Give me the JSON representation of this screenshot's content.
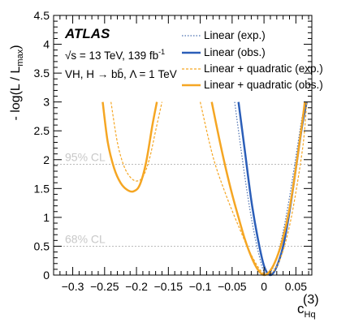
{
  "chart_data": {
    "type": "line",
    "xlim": [
      -0.33,
      0.075
    ],
    "ylim": [
      0,
      4.5
    ],
    "x_ticks": [
      -0.3,
      -0.25,
      -0.2,
      -0.15,
      -0.1,
      -0.05,
      0,
      0.05
    ],
    "x_tick_labels": [
      "−0.3",
      "−0.25",
      "−0.2",
      "−0.15",
      "−0.1",
      "−0.05",
      "0",
      "0.05"
    ],
    "y_ticks": [
      0,
      0.5,
      1,
      1.5,
      2,
      2.5,
      3,
      3.5,
      4,
      4.5
    ],
    "y_tick_labels": [
      "0",
      "0.5",
      "1",
      "1.5",
      "2",
      "2.5",
      "3",
      "3.5",
      "4",
      "4.5"
    ],
    "ylabel": "- log(L / L",
    "ylabel_sub": "max",
    "ylabel_close": ")",
    "xlabel": "c",
    "xlabel_sub": "Hq",
    "xlabel_sup": "(3)",
    "reference_lines": [
      {
        "label": "95% CL",
        "y": 1.92
      },
      {
        "label": "68% CL",
        "y": 0.5
      }
    ],
    "atlas_label": "ATLAS",
    "info_lines": [
      "√s = 13 TeV, 139 fb",
      "VH, H → bb̄, Λ = 1 TeV"
    ],
    "info_sup": "-1",
    "series": [
      {
        "name": "Linear (exp.)",
        "color": "#4a6fb0",
        "style": "dotted",
        "x": [
          -0.046,
          -0.04,
          -0.03,
          -0.02,
          -0.01,
          0.0,
          0.01,
          0.02,
          0.03,
          0.04,
          0.05,
          0.06,
          0.066
        ],
        "y": [
          3.0,
          2.5,
          1.7,
          1.0,
          0.45,
          0.06,
          0.05,
          0.3,
          0.75,
          1.35,
          2.05,
          2.75,
          3.0
        ]
      },
      {
        "name": "Linear (obs.)",
        "color": "#2b5eb8",
        "style": "solid",
        "x": [
          -0.04,
          -0.03,
          -0.02,
          -0.01,
          0.0,
          0.01,
          0.02,
          0.03,
          0.04,
          0.05,
          0.06,
          0.067
        ],
        "y": [
          3.0,
          2.15,
          1.3,
          0.65,
          0.16,
          0.0,
          0.15,
          0.5,
          1.1,
          1.85,
          2.6,
          3.0
        ]
      },
      {
        "name": "Linear + quadratic (exp.)",
        "color": "#f5a623",
        "style": "dashed",
        "x_left": [
          -0.24,
          -0.23,
          -0.22,
          -0.21,
          -0.2,
          -0.19,
          -0.18,
          -0.17,
          -0.16
        ],
        "y_left": [
          3.0,
          2.3,
          1.9,
          1.7,
          1.63,
          1.7,
          2.0,
          2.5,
          3.0
        ],
        "x_right": [
          -0.1,
          -0.08,
          -0.06,
          -0.04,
          -0.02,
          0.0,
          0.02,
          0.04,
          0.06,
          0.067
        ],
        "y_right": [
          3.0,
          2.05,
          1.4,
          0.85,
          0.35,
          0.03,
          0.15,
          0.85,
          2.15,
          3.0
        ]
      },
      {
        "name": "Linear + quadratic (obs.)",
        "color": "#f5a623",
        "style": "solid",
        "x_left": [
          -0.253,
          -0.245,
          -0.235,
          -0.225,
          -0.215,
          -0.205,
          -0.195,
          -0.185,
          -0.175,
          -0.168
        ],
        "y_left": [
          3.0,
          2.3,
          1.85,
          1.6,
          1.48,
          1.45,
          1.56,
          1.95,
          2.6,
          3.0
        ],
        "x_right": [
          -0.082,
          -0.07,
          -0.06,
          -0.05,
          -0.04,
          -0.03,
          -0.02,
          -0.01,
          0.0,
          0.01,
          0.02,
          0.03,
          0.04,
          0.05,
          0.06,
          0.064
        ],
        "y_right": [
          3.0,
          2.35,
          1.85,
          1.4,
          1.0,
          0.62,
          0.32,
          0.1,
          0.0,
          0.08,
          0.3,
          0.65,
          1.15,
          1.85,
          2.65,
          3.0
        ]
      }
    ]
  }
}
